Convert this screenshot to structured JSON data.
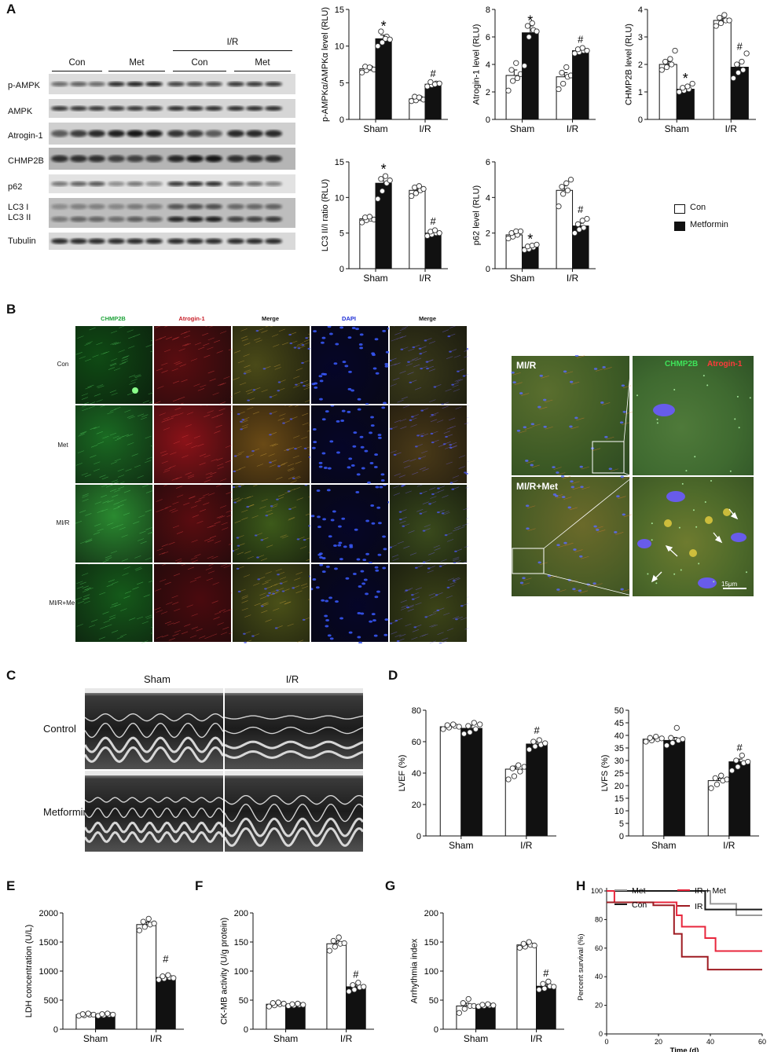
{
  "panels": {
    "A": "A",
    "B": "B",
    "C": "C",
    "D": "D",
    "E": "E",
    "F": "F",
    "G": "G",
    "H": "H"
  },
  "panel_a": {
    "ir_label": "I/R",
    "groups": [
      "Con",
      "Met",
      "Con",
      "Met"
    ],
    "blot_rows": [
      "p-AMPK",
      "AMPK",
      "Atrogin-1",
      "CHMP2B",
      "p62",
      "LC3 I",
      "LC3 II",
      "Tubulin"
    ],
    "legend": {
      "con": "Con",
      "met": "Metformin"
    }
  },
  "panel_b": {
    "channels": [
      "CHMP2B",
      "Atrogin-1",
      "Merge",
      "DAPI",
      "Merge"
    ],
    "rows": [
      "Con",
      "Met",
      "MI/R",
      "MI/R+Met"
    ],
    "zoom_labels": [
      "MI/R",
      "MI/R+Met"
    ],
    "zoom_legend_green": "CHMP2B",
    "zoom_legend_red": "Atrogin-1",
    "scale": "15μm",
    "colors": {
      "green": "#1fa33a",
      "red": "#c8202a",
      "blue": "#1f2fd6"
    }
  },
  "panel_c": {
    "cols": [
      "Sham",
      "I/R"
    ],
    "rows": [
      "Control",
      "Metformin"
    ]
  },
  "chart_data": [
    {
      "id": "A1",
      "type": "bar",
      "categories": [
        "Sham",
        "I/R"
      ],
      "ylabel": "p-AMPKα/AMPKα level (RLU)",
      "ylim": [
        0,
        15
      ],
      "yticks": [
        0,
        5,
        10,
        15
      ],
      "series": [
        {
          "name": "Con",
          "values": [
            6.9,
            2.8
          ]
        },
        {
          "name": "Metformin",
          "values": [
            11.0,
            4.8
          ]
        }
      ],
      "errors": [
        [
          0.3,
          0.2
        ],
        [
          0.5,
          0.2
        ]
      ],
      "points": [
        [
          [
            6.4,
            6.7,
            7.0,
            7.2,
            7.1,
            6.8
          ],
          [
            2.5,
            2.6,
            2.9,
            3.1,
            3.0,
            2.7
          ]
        ],
        [
          [
            10.0,
            10.5,
            11.3,
            12.0,
            11.0,
            10.9
          ],
          [
            4.5,
            4.7,
            4.9,
            5.1,
            4.8,
            4.9
          ]
        ]
      ],
      "annotations": [
        {
          "text": "*",
          "cat": 0,
          "series": 1,
          "y": 12.9
        },
        {
          "text": "#",
          "cat": 1,
          "series": 1,
          "y": 6.2
        }
      ]
    },
    {
      "id": "A2",
      "type": "bar",
      "categories": [
        "Sham",
        "I/R"
      ],
      "ylabel": "Atrogin-1 level (RLU)",
      "ylim": [
        0,
        8
      ],
      "yticks": [
        0,
        2,
        4,
        6,
        8
      ],
      "series": [
        {
          "name": "Con",
          "values": [
            3.2,
            3.1
          ]
        },
        {
          "name": "Metformin",
          "values": [
            6.3,
            5.0
          ]
        }
      ],
      "errors": [
        [
          0.4,
          0.3
        ],
        [
          0.5,
          0.2
        ]
      ],
      "points": [
        [
          [
            2.1,
            2.8,
            3.0,
            3.6,
            4.1,
            3.3
          ],
          [
            2.2,
            2.6,
            3.1,
            3.4,
            3.8,
            3.2
          ]
        ],
        [
          [
            3.9,
            6.0,
            6.5,
            6.8,
            7.0,
            6.4
          ],
          [
            4.8,
            4.9,
            5.0,
            5.1,
            5.2,
            5.0
          ]
        ]
      ],
      "annotations": [
        {
          "text": "*",
          "cat": 0,
          "series": 1,
          "y": 7.3
        },
        {
          "text": "#",
          "cat": 1,
          "series": 1,
          "y": 5.8
        }
      ]
    },
    {
      "id": "A3",
      "type": "bar",
      "categories": [
        "Sham",
        "I/R"
      ],
      "ylabel": "CHMP2B level (RLU)",
      "ylim": [
        0,
        4
      ],
      "yticks": [
        0,
        1,
        2,
        3,
        4
      ],
      "series": [
        {
          "name": "Con",
          "values": [
            2.0,
            3.6
          ]
        },
        {
          "name": "Metformin",
          "values": [
            1.1,
            1.9
          ]
        }
      ],
      "errors": [
        [
          0.1,
          0.08
        ],
        [
          0.08,
          0.15
        ]
      ],
      "points": [
        [
          [
            1.8,
            1.9,
            2.0,
            2.1,
            2.2,
            2.5
          ],
          [
            3.4,
            3.5,
            3.6,
            3.7,
            3.8,
            3.6
          ]
        ],
        [
          [
            1.0,
            1.05,
            1.1,
            1.15,
            1.2,
            1.3
          ],
          [
            1.5,
            1.7,
            1.8,
            2.0,
            2.1,
            2.4
          ]
        ]
      ],
      "annotations": [
        {
          "text": "*",
          "cat": 0,
          "series": 1,
          "y": 1.55
        },
        {
          "text": "#",
          "cat": 1,
          "series": 1,
          "y": 2.65
        }
      ]
    },
    {
      "id": "A4",
      "type": "bar",
      "categories": [
        "Sham",
        "I/R"
      ],
      "ylabel": "LC3 II/I ratio (RLU)",
      "ylim": [
        0,
        15
      ],
      "yticks": [
        0,
        5,
        10,
        15
      ],
      "series": [
        {
          "name": "Con",
          "values": [
            7.0,
            11.0
          ]
        },
        {
          "name": "Metformin",
          "values": [
            12.0,
            5.0
          ]
        }
      ],
      "errors": [
        [
          0.25,
          0.4
        ],
        [
          0.7,
          0.3
        ]
      ],
      "points": [
        [
          [
            6.5,
            6.8,
            7.0,
            7.2,
            7.3,
            6.9
          ],
          [
            10.2,
            10.6,
            11.0,
            11.4,
            11.6,
            11.2
          ]
        ],
        [
          [
            9.8,
            10.9,
            12.0,
            12.6,
            13.0,
            12.4
          ],
          [
            4.6,
            4.8,
            5.0,
            5.2,
            5.4,
            5.0
          ]
        ]
      ],
      "annotations": [
        {
          "text": "*",
          "cat": 0,
          "series": 1,
          "y": 14.2
        },
        {
          "text": "#",
          "cat": 1,
          "series": 1,
          "y": 6.6
        }
      ]
    },
    {
      "id": "A5",
      "type": "bar",
      "categories": [
        "Sham",
        "I/R"
      ],
      "ylabel": "p62 level (RLU)",
      "ylim": [
        0,
        6
      ],
      "yticks": [
        0,
        2,
        4,
        6
      ],
      "series": [
        {
          "name": "Con",
          "values": [
            1.9,
            4.4
          ]
        },
        {
          "name": "Metformin",
          "values": [
            1.2,
            2.4
          ]
        }
      ],
      "errors": [
        [
          0.1,
          0.25
        ],
        [
          0.05,
          0.15
        ]
      ],
      "points": [
        [
          [
            1.7,
            1.8,
            1.9,
            2.0,
            2.1,
            2.1
          ],
          [
            3.5,
            4.2,
            4.4,
            4.6,
            4.8,
            5.0
          ]
        ],
        [
          [
            1.05,
            1.1,
            1.2,
            1.25,
            1.3,
            1.35
          ],
          [
            2.0,
            2.2,
            2.3,
            2.5,
            2.7,
            2.8
          ]
        ]
      ],
      "annotations": [
        {
          "text": "*",
          "cat": 0,
          "series": 1,
          "y": 1.75
        },
        {
          "text": "#",
          "cat": 1,
          "series": 1,
          "y": 3.3
        }
      ]
    },
    {
      "id": "D1",
      "type": "bar",
      "categories": [
        "Sham",
        "I/R"
      ],
      "ylabel": "LVEF (%)",
      "ylim": [
        0,
        80
      ],
      "yticks": [
        0,
        20,
        40,
        60,
        80
      ],
      "series": [
        {
          "name": "Con",
          "values": [
            69.5,
            42.5
          ]
        },
        {
          "name": "Metformin",
          "values": [
            68.5,
            58.5
          ]
        }
      ],
      "errors": [
        [
          0.8,
          2.0
        ],
        [
          2.0,
          1.5
        ]
      ],
      "points": [
        [
          [
            68,
            69,
            70,
            70.5,
            71,
            69.5
          ],
          [
            36,
            38,
            41,
            43,
            45,
            44
          ]
        ],
        [
          [
            65,
            66,
            68,
            70,
            72,
            71
          ],
          [
            55,
            57,
            58,
            60,
            61,
            59
          ]
        ]
      ],
      "annotations": [
        {
          "text": "#",
          "cat": 1,
          "series": 1,
          "y": 67
        }
      ]
    },
    {
      "id": "D2",
      "type": "bar",
      "categories": [
        "Sham",
        "I/R"
      ],
      "ylabel": "LVFS (%)",
      "ylim": [
        0,
        50
      ],
      "yticks": [
        0,
        5,
        10,
        15,
        20,
        25,
        30,
        35,
        40,
        45,
        50
      ],
      "series": [
        {
          "name": "Con",
          "values": [
            38.5,
            22
          ]
        },
        {
          "name": "Metformin",
          "values": [
            38.0,
            29.5
          ]
        }
      ],
      "errors": [
        [
          0.5,
          1.0
        ],
        [
          1.2,
          1.1
        ]
      ],
      "points": [
        [
          [
            37.5,
            38,
            38.5,
            39,
            39.5,
            38.8
          ],
          [
            19,
            20.5,
            22,
            23,
            24,
            22.5
          ]
        ],
        [
          [
            36,
            37,
            38,
            39,
            43,
            38.5
          ],
          [
            26,
            27.5,
            29,
            30,
            32,
            29.5
          ]
        ]
      ],
      "annotations": [
        {
          "text": "#",
          "cat": 1,
          "series": 1,
          "y": 35
        }
      ]
    },
    {
      "id": "E",
      "type": "bar",
      "categories": [
        "Sham",
        "I/R"
      ],
      "ylabel": "LDH concentration (U/L)",
      "ylim": [
        0,
        2000
      ],
      "yticks": [
        0,
        500,
        1000,
        1500,
        2000
      ],
      "series": [
        {
          "name": "Con",
          "values": [
            250,
            1800
          ]
        },
        {
          "name": "Metformin",
          "values": [
            250,
            890
          ]
        }
      ],
      "errors": [
        [
          20,
          45
        ],
        [
          20,
          25
        ]
      ],
      "points": [
        [
          [
            230,
            240,
            250,
            260,
            270,
            250
          ],
          [
            1700,
            1760,
            1800,
            1850,
            1900,
            1820
          ]
        ],
        [
          [
            230,
            240,
            250,
            260,
            270,
            250
          ],
          [
            850,
            870,
            890,
            910,
            930,
            880
          ]
        ]
      ],
      "annotations": [
        {
          "text": "#",
          "cat": 1,
          "series": 1,
          "y": 1200
        }
      ]
    },
    {
      "id": "F",
      "type": "bar",
      "categories": [
        "Sham",
        "I/R"
      ],
      "ylabel": "CK-MB activity (U/g protein)",
      "ylim": [
        0,
        200
      ],
      "yticks": [
        0,
        50,
        100,
        150,
        200
      ],
      "series": [
        {
          "name": "Con",
          "values": [
            43,
            147
          ]
        },
        {
          "name": "Metformin",
          "values": [
            42,
            73
          ]
        }
      ],
      "errors": [
        [
          2,
          5
        ],
        [
          1.5,
          3
        ]
      ],
      "points": [
        [
          [
            39,
            41,
            43,
            45,
            46,
            44
          ],
          [
            135,
            142,
            147,
            152,
            158,
            148
          ]
        ],
        [
          [
            40,
            41,
            42,
            43,
            44,
            42
          ],
          [
            65,
            68,
            72,
            76,
            80,
            73
          ]
        ]
      ],
      "annotations": [
        {
          "text": "#",
          "cat": 1,
          "series": 1,
          "y": 94
        }
      ]
    },
    {
      "id": "G",
      "type": "bar",
      "categories": [
        "Sham",
        "I/R"
      ],
      "ylabel": "Arrhythmia index",
      "ylim": [
        0,
        200
      ],
      "yticks": [
        0,
        50,
        100,
        150,
        200
      ],
      "series": [
        {
          "name": "Con",
          "values": [
            40,
            145
          ]
        },
        {
          "name": "Metformin",
          "values": [
            41,
            74
          ]
        }
      ],
      "errors": [
        [
          5,
          2
        ],
        [
          1.5,
          3
        ]
      ],
      "points": [
        [
          [
            28,
            35,
            40,
            45,
            52,
            40
          ],
          [
            140,
            142,
            145,
            147,
            150,
            144
          ]
        ],
        [
          [
            39,
            40,
            41,
            42,
            43,
            41
          ],
          [
            68,
            70,
            74,
            78,
            82,
            73
          ]
        ]
      ],
      "annotations": [
        {
          "text": "#",
          "cat": 1,
          "series": 1,
          "y": 96
        }
      ]
    },
    {
      "id": "H",
      "type": "line",
      "xlabel": "Time (d)",
      "ylabel": "Percent survival (%)",
      "xlim": [
        0,
        60
      ],
      "ylim": [
        0,
        100
      ],
      "xticks": [
        0,
        20,
        40,
        60
      ],
      "yticks": [
        0,
        20,
        40,
        60,
        80,
        100
      ],
      "series": [
        {
          "name": "Met",
          "color": "#9a9a9a",
          "x": [
            0,
            40,
            40,
            50,
            50,
            60
          ],
          "y": [
            100,
            100,
            91,
            91,
            83,
            83
          ]
        },
        {
          "name": "Con",
          "color": "#1a1a1a",
          "x": [
            0,
            28,
            28,
            38,
            38,
            60
          ],
          "y": [
            100,
            100,
            100,
            100,
            87,
            87
          ]
        },
        {
          "name": "IR + Met",
          "color": "#e8263c",
          "x": [
            0,
            3,
            3,
            18,
            18,
            27,
            27,
            29,
            29,
            38,
            38,
            42,
            42,
            60
          ],
          "y": [
            100,
            100,
            92,
            92,
            92,
            92,
            83,
            83,
            75,
            75,
            67,
            67,
            58,
            58
          ]
        },
        {
          "name": "IR",
          "color": "#9e1b22",
          "x": [
            0,
            18,
            18,
            26,
            26,
            29,
            29,
            39,
            39,
            60
          ],
          "y": [
            92,
            92,
            90,
            90,
            70,
            70,
            54,
            54,
            45,
            45
          ]
        }
      ]
    }
  ]
}
